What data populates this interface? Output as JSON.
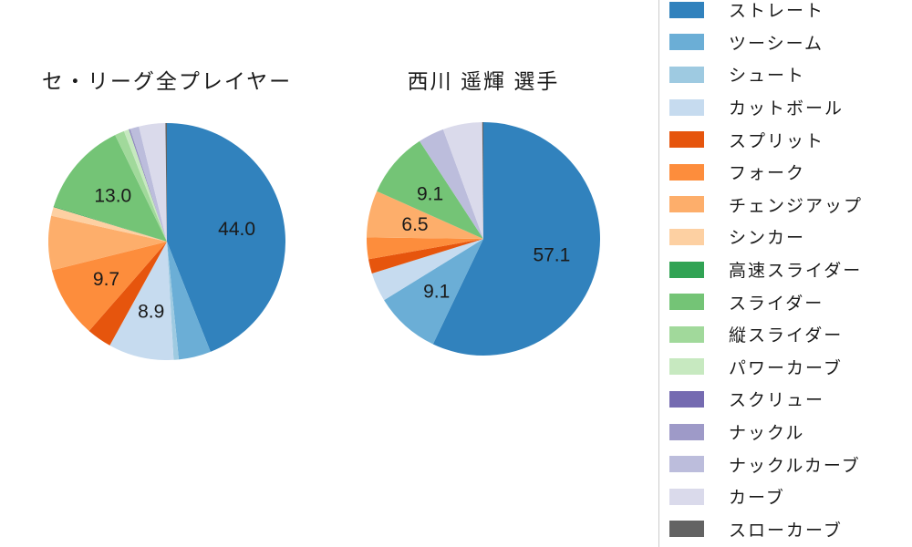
{
  "titles": {
    "left": "セ・リーグ全プレイヤー",
    "right": "西川 遥輝 選手"
  },
  "text_color": "#1a1a1a",
  "legend": {
    "border_color": "#cccccc",
    "items": [
      {
        "label": "ストレート",
        "color": "#3182bd"
      },
      {
        "label": "ツーシーム",
        "color": "#6baed6"
      },
      {
        "label": "シュート",
        "color": "#9ecae1"
      },
      {
        "label": "カットボール",
        "color": "#c6dbef"
      },
      {
        "label": "スプリット",
        "color": "#e6550d"
      },
      {
        "label": "フォーク",
        "color": "#fd8d3c"
      },
      {
        "label": "チェンジアップ",
        "color": "#fdae6b"
      },
      {
        "label": "シンカー",
        "color": "#fdd0a2"
      },
      {
        "label": "高速スライダー",
        "color": "#31a354"
      },
      {
        "label": "スライダー",
        "color": "#74c476"
      },
      {
        "label": "縦スライダー",
        "color": "#a1d99b"
      },
      {
        "label": "パワーカーブ",
        "color": "#c7e9c0"
      },
      {
        "label": "スクリュー",
        "color": "#756bb1"
      },
      {
        "label": "ナックル",
        "color": "#9e9ac8"
      },
      {
        "label": "ナックルカーブ",
        "color": "#bcbddc"
      },
      {
        "label": "カーブ",
        "color": "#dadaeb"
      },
      {
        "label": "スローカーブ",
        "color": "#636363"
      }
    ]
  },
  "chart_data": [
    {
      "type": "pie",
      "title": "セ・リーグ全プレイヤー",
      "unit": "percent",
      "start_angle": "top",
      "direction": "clockwise",
      "radius_px": 130,
      "pct_distance": 0.6,
      "slices": [
        {
          "label": "ストレート",
          "value": 44.0,
          "display": "44.0",
          "color": "#3182bd"
        },
        {
          "label": "ツーシーム",
          "value": 4.4,
          "display": "",
          "color": "#6baed6"
        },
        {
          "label": "シュート",
          "value": 0.7,
          "display": "",
          "color": "#9ecae1"
        },
        {
          "label": "カットボール",
          "value": 8.9,
          "display": "8.9",
          "color": "#c6dbef"
        },
        {
          "label": "スプリット",
          "value": 3.4,
          "display": "",
          "color": "#e6550d"
        },
        {
          "label": "フォーク",
          "value": 9.7,
          "display": "9.7",
          "color": "#fd8d3c"
        },
        {
          "label": "チェンジアップ",
          "value": 7.4,
          "display": "",
          "color": "#fdae6b"
        },
        {
          "label": "シンカー",
          "value": 1.2,
          "display": "",
          "color": "#fdd0a2"
        },
        {
          "label": "高速スライダー",
          "value": 0.1,
          "display": "",
          "color": "#31a354"
        },
        {
          "label": "スライダー",
          "value": 13.0,
          "display": "13.0",
          "color": "#74c476"
        },
        {
          "label": "縦スライダー",
          "value": 1.3,
          "display": "",
          "color": "#a1d99b"
        },
        {
          "label": "パワーカーブ",
          "value": 0.7,
          "display": "",
          "color": "#c7e9c0"
        },
        {
          "label": "スクリュー",
          "value": 0.1,
          "display": "",
          "color": "#756bb1"
        },
        {
          "label": "ナックル",
          "value": 0.1,
          "display": "",
          "color": "#9e9ac8"
        },
        {
          "label": "ナックルカーブ",
          "value": 1.2,
          "display": "",
          "color": "#bcbddc"
        },
        {
          "label": "カーブ",
          "value": 3.6,
          "display": "",
          "color": "#dadaeb"
        },
        {
          "label": "スローカーブ",
          "value": 0.2,
          "display": "",
          "color": "#636363"
        }
      ]
    },
    {
      "type": "pie",
      "title": "西川 遥輝 選手",
      "unit": "percent",
      "start_angle": "top",
      "direction": "clockwise",
      "radius_px": 128,
      "pct_distance": 0.6,
      "slices": [
        {
          "label": "ストレート",
          "value": 57.1,
          "display": "57.1",
          "color": "#3182bd"
        },
        {
          "label": "ツーシーム",
          "value": 9.1,
          "display": "9.1",
          "color": "#6baed6"
        },
        {
          "label": "シュート",
          "value": 0,
          "display": "",
          "color": "#9ecae1"
        },
        {
          "label": "カットボール",
          "value": 4.0,
          "display": "",
          "color": "#c6dbef"
        },
        {
          "label": "スプリット",
          "value": 2.0,
          "display": "",
          "color": "#e6550d"
        },
        {
          "label": "フォーク",
          "value": 3.0,
          "display": "",
          "color": "#fd8d3c"
        },
        {
          "label": "チェンジアップ",
          "value": 6.5,
          "display": "6.5",
          "color": "#fdae6b"
        },
        {
          "label": "シンカー",
          "value": 0,
          "display": "",
          "color": "#fdd0a2"
        },
        {
          "label": "高速スライダー",
          "value": 0,
          "display": "",
          "color": "#31a354"
        },
        {
          "label": "スライダー",
          "value": 9.1,
          "display": "9.1",
          "color": "#74c476"
        },
        {
          "label": "縦スライダー",
          "value": 0,
          "display": "",
          "color": "#a1d99b"
        },
        {
          "label": "パワーカーブ",
          "value": 0,
          "display": "",
          "color": "#c7e9c0"
        },
        {
          "label": "スクリュー",
          "value": 0,
          "display": "",
          "color": "#756bb1"
        },
        {
          "label": "ナックル",
          "value": 0,
          "display": "",
          "color": "#9e9ac8"
        },
        {
          "label": "ナックルカーブ",
          "value": 3.6,
          "display": "",
          "color": "#bcbddc"
        },
        {
          "label": "カーブ",
          "value": 5.45,
          "display": "",
          "color": "#dadaeb"
        },
        {
          "label": "スローカーブ",
          "value": 0.15,
          "display": "",
          "color": "#636363"
        }
      ]
    }
  ]
}
